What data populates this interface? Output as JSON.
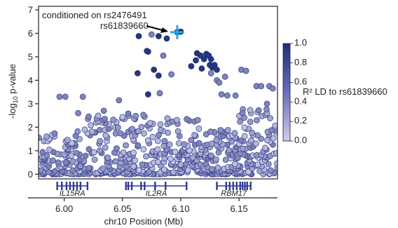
{
  "chart_data": {
    "type": "scatter",
    "title": "",
    "xlabel": "chr10 Position (Mb)",
    "ylabel_prefix": "-log",
    "ylabel_sub": "10",
    "ylabel_suffix": " p-value",
    "xlim": [
      5.978,
      6.183
    ],
    "ylim": [
      -0.2,
      7.15
    ],
    "x_ticks": [
      6.0,
      6.05,
      6.1,
      6.15
    ],
    "x_tick_labels": [
      "6.00",
      "6.05",
      "6.10",
      "6.15"
    ],
    "y_ticks": [
      0,
      1,
      2,
      3,
      4,
      5,
      6,
      7
    ],
    "y_tick_labels": [
      "0",
      "1",
      "2",
      "3",
      "4",
      "5",
      "6",
      "7"
    ],
    "annotation_text": "conditioned on rs2476491",
    "lead_snp": {
      "label": "rs61839660",
      "x": 6.097,
      "y": 6.05,
      "color": "#29a8e0"
    },
    "colorbar": {
      "label": "R² LD to rs61839660",
      "ticks": [
        "1.0",
        "0.8",
        "0.6",
        "0.4",
        "0.2",
        "0.0"
      ],
      "colors": [
        "#1e2e7a",
        "#cdcdea"
      ]
    },
    "genes": [
      {
        "name": "IL15RA",
        "start": 5.994,
        "end": 6.02,
        "exons": [
          5.994,
          5.998,
          6.002,
          6.005,
          6.008,
          6.011,
          6.014,
          6.02
        ]
      },
      {
        "name": "IL2RA",
        "start": 6.053,
        "end": 6.105,
        "exons": [
          6.053,
          6.055,
          6.058,
          6.066,
          6.069,
          6.078,
          6.087,
          6.105
        ]
      },
      {
        "name": "RBM17",
        "start": 6.131,
        "end": 6.16,
        "exons": [
          6.131,
          6.139,
          6.142,
          6.145,
          6.148,
          6.151,
          6.153,
          6.155,
          6.157,
          6.16
        ]
      }
    ],
    "high_ld_points": [
      [
        6.064,
        5.88
      ],
      [
        6.071,
        5.25
      ],
      [
        6.072,
        5.22
      ],
      [
        6.081,
        5.88
      ],
      [
        6.088,
        5.78
      ],
      [
        6.097,
        6.05
      ],
      [
        6.1,
        6.07
      ],
      [
        6.063,
        4.3
      ],
      [
        6.072,
        3.4
      ],
      [
        6.077,
        4.45
      ],
      [
        6.081,
        4.2
      ],
      [
        6.109,
        4.6
      ],
      [
        6.113,
        4.85
      ],
      [
        6.117,
        5.05
      ],
      [
        6.118,
        4.5
      ],
      [
        6.12,
        4.9
      ],
      [
        6.122,
        5.12
      ],
      [
        6.124,
        5.05
      ],
      [
        6.125,
        4.65
      ],
      [
        6.126,
        4.9
      ],
      [
        6.127,
        4.55
      ],
      [
        6.129,
        4.65
      ],
      [
        6.131,
        4.45
      ],
      [
        6.114,
        5.15
      ]
    ],
    "med_ld_points": [
      [
        6.075,
        5.95
      ],
      [
        6.085,
        5.05
      ],
      [
        6.092,
        4.25
      ],
      [
        6.082,
        3.45
      ],
      [
        6.131,
        4.0
      ],
      [
        6.133,
        3.9
      ],
      [
        6.126,
        4.3
      ],
      [
        6.138,
        4.15
      ],
      [
        6.135,
        3.4
      ],
      [
        6.14,
        3.35
      ],
      [
        6.147,
        3.35
      ],
      [
        6.152,
        4.45
      ],
      [
        6.156,
        4.4
      ],
      [
        6.165,
        3.75
      ],
      [
        6.169,
        3.75
      ],
      [
        6.176,
        3.75
      ],
      [
        6.179,
        3.65
      ],
      [
        6.153,
        2.6
      ],
      [
        6.174,
        3.0
      ],
      [
        5.996,
        3.3
      ],
      [
        6.001,
        3.3
      ],
      [
        6.016,
        3.3
      ],
      [
        6.047,
        3.15
      ],
      [
        6.012,
        2.6
      ],
      [
        6.021,
        2.45
      ],
      [
        6.034,
        2.7
      ]
    ]
  }
}
